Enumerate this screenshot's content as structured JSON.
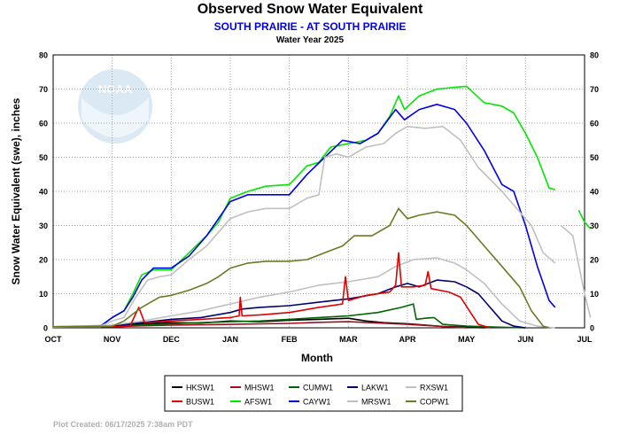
{
  "chart_data": {
    "type": "line",
    "title": "Observed Snow Water Equivalent",
    "subtitle": "SOUTH PRAIRIE - AT SOUTH PRAIRIE",
    "subtitle2": "Water Year 2025",
    "ylabel": "Snow Water Equivalent (swe),  inches",
    "xlabel": "Month",
    "x_categories": [
      "OCT",
      "NOV",
      "DEC",
      "JAN",
      "FEB",
      "MAR",
      "APR",
      "MAY",
      "JUN",
      "JUL"
    ],
    "ylim": [
      0,
      80
    ],
    "yticks": [
      0,
      10,
      20,
      30,
      40,
      50,
      60,
      70,
      80
    ],
    "grid": true,
    "legend_position": "bottom",
    "footer": "Plot Created: 06/17/2025 7:38am PDT",
    "logo_text": "NOAA",
    "series": [
      {
        "name": "HKSW1",
        "color": "#000000",
        "points": [
          [
            0,
            0.3
          ],
          [
            1,
            0.5
          ],
          [
            1.5,
            1.2
          ],
          [
            2,
            1.5
          ],
          [
            2.5,
            1.4
          ],
          [
            3,
            2.0
          ],
          [
            3.5,
            1.8
          ],
          [
            4,
            2.2
          ],
          [
            4.5,
            2.5
          ],
          [
            5,
            2.8
          ],
          [
            5.3,
            2.0
          ],
          [
            5.6,
            1.5
          ],
          [
            6,
            1.2
          ],
          [
            6.3,
            0.8
          ],
          [
            6.6,
            0.4
          ],
          [
            7,
            0.2
          ],
          [
            7.3,
            0
          ]
        ]
      },
      {
        "name": "MHSW1",
        "color": "#a01020",
        "points": [
          [
            0,
            0.2
          ],
          [
            1,
            0.3
          ],
          [
            1.5,
            0.6
          ],
          [
            2,
            0.8
          ],
          [
            3,
            1.0
          ],
          [
            4,
            1.3
          ],
          [
            4.5,
            1.6
          ],
          [
            5,
            1.8
          ],
          [
            5.5,
            1.4
          ],
          [
            6,
            1.0
          ],
          [
            6.5,
            0.5
          ],
          [
            7,
            0
          ]
        ]
      },
      {
        "name": "CUMW1",
        "color": "#006400",
        "points": [
          [
            0,
            0.3
          ],
          [
            1,
            0.5
          ],
          [
            1.5,
            0.8
          ],
          [
            2,
            1.2
          ],
          [
            2.5,
            1.5
          ],
          [
            3,
            1.8
          ],
          [
            3.5,
            2.0
          ],
          [
            4,
            2.5
          ],
          [
            4.5,
            3.0
          ],
          [
            5,
            3.5
          ],
          [
            5.5,
            4.5
          ],
          [
            5.9,
            6.0
          ],
          [
            6.1,
            7.0
          ],
          [
            6.15,
            2.5
          ],
          [
            6.3,
            2.8
          ],
          [
            6.45,
            3.0
          ],
          [
            6.6,
            1.0
          ],
          [
            7,
            0.5
          ],
          [
            7.5,
            0.2
          ],
          [
            8,
            0
          ]
        ]
      },
      {
        "name": "LAKW1",
        "color": "#00006e",
        "points": [
          [
            0,
            0.2
          ],
          [
            1,
            0.5
          ],
          [
            1.5,
            1.5
          ],
          [
            2,
            2.5
          ],
          [
            2.5,
            3.0
          ],
          [
            3,
            4.5
          ],
          [
            3.2,
            5.5
          ],
          [
            3.5,
            6.0
          ],
          [
            4,
            6.5
          ],
          [
            4.5,
            7.5
          ],
          [
            5,
            8.5
          ],
          [
            5.5,
            10.0
          ],
          [
            5.8,
            12.0
          ],
          [
            6,
            13.0
          ],
          [
            6.2,
            12.0
          ],
          [
            6.5,
            14.0
          ],
          [
            6.8,
            13.5
          ],
          [
            7,
            12.0
          ],
          [
            7.2,
            10.0
          ],
          [
            7.4,
            6.0
          ],
          [
            7.6,
            2.0
          ],
          [
            7.8,
            0.5
          ],
          [
            8,
            0
          ]
        ]
      },
      {
        "name": "RXSW1",
        "color": "#c0c0c0",
        "points": [
          [
            0,
            0.3
          ],
          [
            1,
            0.8
          ],
          [
            1.5,
            2.0
          ],
          [
            2,
            3.5
          ],
          [
            2.5,
            5.0
          ],
          [
            3,
            7.0
          ],
          [
            3.5,
            9.0
          ],
          [
            4,
            10.5
          ],
          [
            4.5,
            12.5
          ],
          [
            5,
            13.5
          ],
          [
            5.5,
            15.0
          ],
          [
            5.8,
            18.0
          ],
          [
            6.1,
            20.0
          ],
          [
            6.5,
            20.5
          ],
          [
            6.8,
            19.0
          ],
          [
            7,
            17.0
          ],
          [
            7.3,
            13.0
          ],
          [
            7.6,
            7.0
          ],
          [
            7.9,
            2.0
          ],
          [
            8.2,
            0.5
          ],
          [
            8.5,
            0
          ]
        ]
      },
      {
        "name": "BUSW1",
        "color": "#e00000",
        "points": [
          [
            0,
            0.2
          ],
          [
            1,
            0.3
          ],
          [
            1.3,
            0.5
          ],
          [
            1.45,
            6.0
          ],
          [
            1.55,
            1.5
          ],
          [
            2,
            2.0
          ],
          [
            2.5,
            2.5
          ],
          [
            3,
            3.0
          ],
          [
            3.15,
            3.5
          ],
          [
            3.17,
            9.0
          ],
          [
            3.2,
            3.5
          ],
          [
            3.5,
            3.8
          ],
          [
            4,
            4.5
          ],
          [
            4.5,
            6.0
          ],
          [
            4.9,
            7.0
          ],
          [
            4.95,
            15.0
          ],
          [
            5,
            8.0
          ],
          [
            5.3,
            9.5
          ],
          [
            5.7,
            10.5
          ],
          [
            5.8,
            12.5
          ],
          [
            5.85,
            22.0
          ],
          [
            5.9,
            12.0
          ],
          [
            6.1,
            12.0
          ],
          [
            6.3,
            12.5
          ],
          [
            6.35,
            16.5
          ],
          [
            6.4,
            11.5
          ],
          [
            6.7,
            10.5
          ],
          [
            6.9,
            9.0
          ],
          [
            7.05,
            5.0
          ],
          [
            7.2,
            1.0
          ],
          [
            7.4,
            0
          ]
        ]
      },
      {
        "name": "AFSW1",
        "color": "#00e600",
        "points": [
          [
            0,
            0.3
          ],
          [
            0.8,
            0.3
          ],
          [
            1,
            3.0
          ],
          [
            1.2,
            5.0
          ],
          [
            1.35,
            10.0
          ],
          [
            1.5,
            15.5
          ],
          [
            1.7,
            17.0
          ],
          [
            2,
            17.0
          ],
          [
            2.3,
            22.0
          ],
          [
            2.6,
            27.0
          ],
          [
            2.8,
            31.0
          ],
          [
            3,
            38.0
          ],
          [
            3.3,
            40.0
          ],
          [
            3.6,
            41.5
          ],
          [
            4,
            42.0
          ],
          [
            4.3,
            47.5
          ],
          [
            4.5,
            48.5
          ],
          [
            4.7,
            53.0
          ],
          [
            5,
            54.0
          ],
          [
            5.3,
            55.0
          ],
          [
            5.5,
            57.0
          ],
          [
            5.7,
            62.0
          ],
          [
            5.85,
            68.0
          ],
          [
            5.95,
            64.0
          ],
          [
            6.2,
            68.0
          ],
          [
            6.5,
            70.0
          ],
          [
            6.8,
            70.5
          ],
          [
            7,
            70.8
          ],
          [
            7.3,
            66.0
          ],
          [
            7.6,
            65.0
          ],
          [
            7.8,
            63.0
          ],
          [
            8,
            57.0
          ],
          [
            8.2,
            50.0
          ],
          [
            8.4,
            41.0
          ],
          [
            8.5,
            40.5
          ]
        ]
      },
      {
        "name": "AFSW1-b",
        "color": "#00e600",
        "points": [
          [
            8.9,
            34.5
          ],
          [
            9.0,
            31.0
          ],
          [
            9.1,
            29.0
          ]
        ]
      },
      {
        "name": "CAYW1",
        "color": "#0000e6",
        "points": [
          [
            0,
            0.2
          ],
          [
            0.8,
            0.5
          ],
          [
            1,
            3.0
          ],
          [
            1.2,
            5.0
          ],
          [
            1.35,
            9.0
          ],
          [
            1.5,
            14.0
          ],
          [
            1.7,
            17.5
          ],
          [
            2,
            17.5
          ],
          [
            2.3,
            21.0
          ],
          [
            2.6,
            27.0
          ],
          [
            2.8,
            32.0
          ],
          [
            3,
            37.0
          ],
          [
            3.3,
            39.0
          ],
          [
            3.6,
            39.0
          ],
          [
            4,
            39.0
          ],
          [
            4.3,
            45.0
          ],
          [
            4.6,
            50.0
          ],
          [
            4.9,
            55.0
          ],
          [
            5.2,
            54.0
          ],
          [
            5.5,
            57.0
          ],
          [
            5.8,
            64.0
          ],
          [
            5.95,
            61.0
          ],
          [
            6.2,
            64.0
          ],
          [
            6.5,
            65.5
          ],
          [
            6.8,
            64.0
          ],
          [
            7,
            60.0
          ],
          [
            7.3,
            52.0
          ],
          [
            7.6,
            42.0
          ],
          [
            7.8,
            40.0
          ],
          [
            8,
            30.0
          ],
          [
            8.2,
            18.0
          ],
          [
            8.4,
            8.0
          ],
          [
            8.5,
            6.0
          ]
        ]
      },
      {
        "name": "MRSW1",
        "color": "#c0c0c0",
        "points": [
          [
            0,
            0.2
          ],
          [
            0.8,
            0.5
          ],
          [
            1,
            2.0
          ],
          [
            1.2,
            3.0
          ],
          [
            1.4,
            9.0
          ],
          [
            1.6,
            14.0
          ],
          [
            1.8,
            15.0
          ],
          [
            2,
            15.5
          ],
          [
            2.3,
            20.0
          ],
          [
            2.6,
            24.0
          ],
          [
            2.8,
            28.0
          ],
          [
            3,
            32.0
          ],
          [
            3.3,
            34.0
          ],
          [
            3.6,
            35.0
          ],
          [
            4,
            35.0
          ],
          [
            4.3,
            38.0
          ],
          [
            4.5,
            39.0
          ],
          [
            4.6,
            50.0
          ],
          [
            4.8,
            51.0
          ],
          [
            5,
            50.0
          ],
          [
            5.3,
            53.0
          ],
          [
            5.6,
            54.0
          ],
          [
            5.8,
            57.0
          ],
          [
            6,
            59.0
          ],
          [
            6.3,
            58.5
          ],
          [
            6.6,
            59.0
          ],
          [
            6.9,
            55.0
          ],
          [
            7.2,
            47.0
          ],
          [
            7.6,
            40.0
          ],
          [
            7.9,
            34.0
          ],
          [
            8.1,
            30.0
          ],
          [
            8.3,
            22.0
          ],
          [
            8.5,
            19.0
          ]
        ]
      },
      {
        "name": "MRSW1-b",
        "color": "#c0c0c0",
        "points": [
          [
            8.6,
            30.0
          ],
          [
            8.8,
            27.0
          ],
          [
            9.0,
            10.0
          ],
          [
            9.1,
            3.0
          ]
        ]
      },
      {
        "name": "COPW1",
        "color": "#6b7b22",
        "points": [
          [
            0,
            0.3
          ],
          [
            1,
            0.5
          ],
          [
            1.2,
            2.0
          ],
          [
            1.5,
            6.0
          ],
          [
            1.8,
            9.0
          ],
          [
            2,
            9.5
          ],
          [
            2.3,
            11.0
          ],
          [
            2.6,
            13.0
          ],
          [
            2.8,
            15.0
          ],
          [
            3,
            17.5
          ],
          [
            3.3,
            19.0
          ],
          [
            3.6,
            19.5
          ],
          [
            4,
            19.5
          ],
          [
            4.3,
            20.0
          ],
          [
            4.6,
            22.0
          ],
          [
            4.9,
            24.0
          ],
          [
            5.1,
            27.0
          ],
          [
            5.4,
            27.0
          ],
          [
            5.7,
            30.0
          ],
          [
            5.85,
            35.0
          ],
          [
            6,
            32.0
          ],
          [
            6.2,
            33.0
          ],
          [
            6.5,
            34.0
          ],
          [
            6.8,
            33.0
          ],
          [
            7,
            30.0
          ],
          [
            7.3,
            24.0
          ],
          [
            7.6,
            18.0
          ],
          [
            7.9,
            12.0
          ],
          [
            8.1,
            5.0
          ],
          [
            8.3,
            0.5
          ],
          [
            8.4,
            0
          ]
        ]
      }
    ],
    "legend": [
      [
        {
          "name": "HKSW1",
          "color": "#000000"
        },
        {
          "name": "MHSW1",
          "color": "#a01020"
        },
        {
          "name": "CUMW1",
          "color": "#006400"
        },
        {
          "name": "LAKW1",
          "color": "#00006e"
        },
        {
          "name": "RXSW1",
          "color": "#c0c0c0"
        }
      ],
      [
        {
          "name": "BUSW1",
          "color": "#e00000"
        },
        {
          "name": "AFSW1",
          "color": "#00e600"
        },
        {
          "name": "CAYW1",
          "color": "#0000e6"
        },
        {
          "name": "MRSW1",
          "color": "#c0c0c0"
        },
        {
          "name": "COPW1",
          "color": "#6b7b22"
        }
      ]
    ]
  }
}
